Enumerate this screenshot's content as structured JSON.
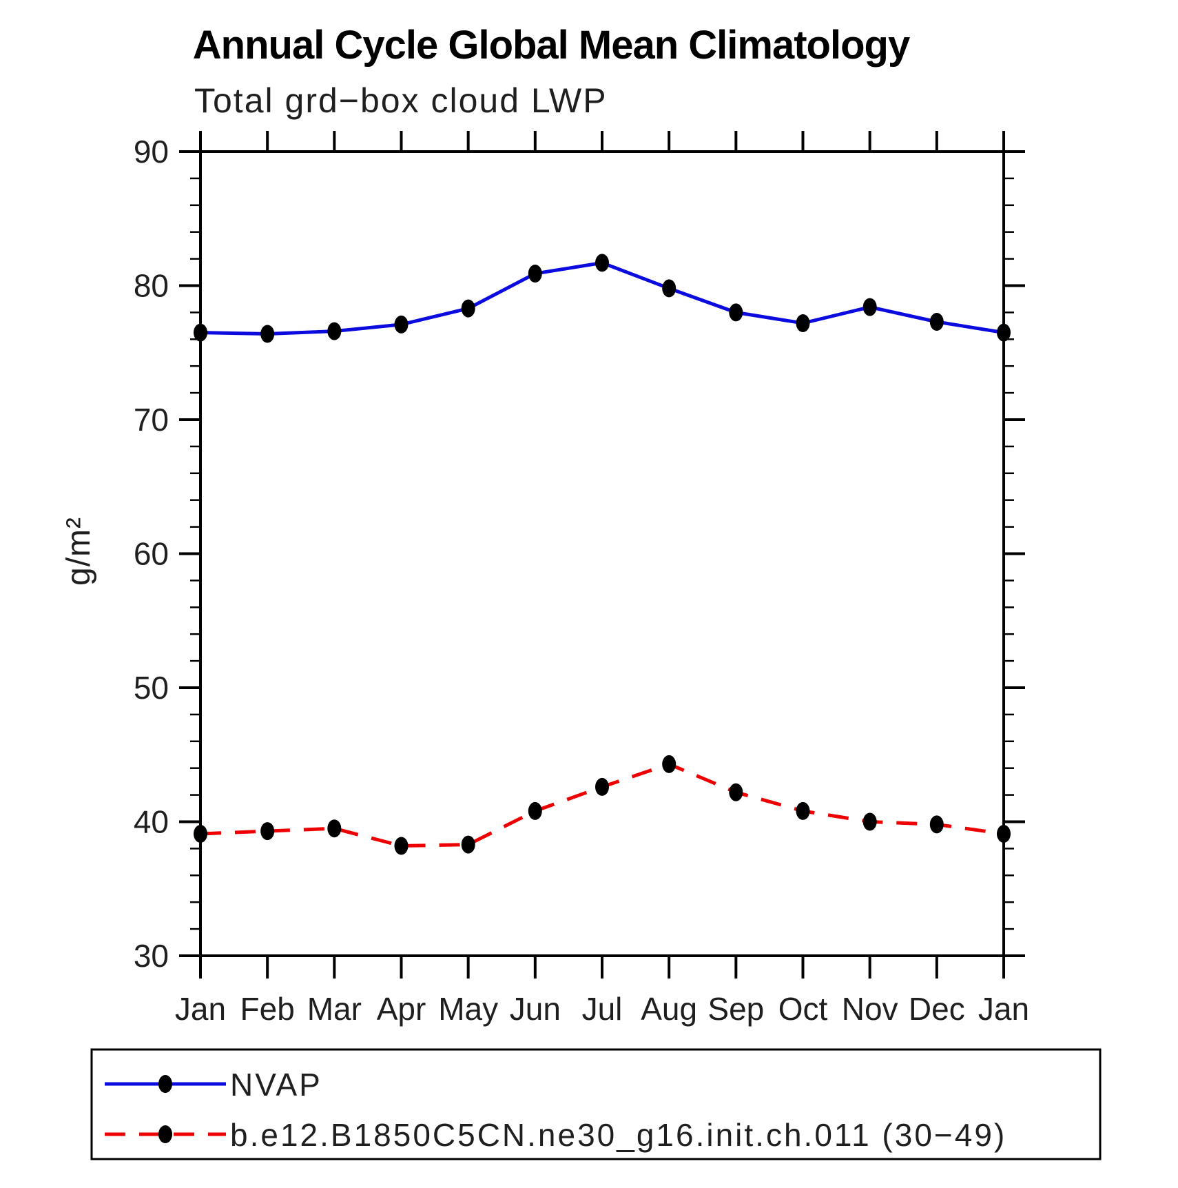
{
  "chart_data": {
    "type": "line",
    "title": "Annual Cycle Global Mean Climatology",
    "subtitle": "Total grd−box cloud LWP",
    "ylabel": "g/m²",
    "xlabel": "",
    "x_categories": [
      "Jan",
      "Feb",
      "Mar",
      "Apr",
      "May",
      "Jun",
      "Jul",
      "Aug",
      "Sep",
      "Oct",
      "Nov",
      "Dec",
      "Jan"
    ],
    "ylim": [
      30,
      90
    ],
    "y_major_ticks": [
      30,
      40,
      50,
      60,
      70,
      80,
      90
    ],
    "y_minor_step": 2,
    "grid": false,
    "legend_position": "bottom",
    "marker_color": "#000000",
    "series": [
      {
        "name": "NVAP",
        "color": "#0b0be0",
        "style": "solid",
        "marker": "filled-ellipse",
        "values": [
          76.5,
          76.4,
          76.6,
          77.1,
          78.3,
          80.9,
          81.7,
          79.8,
          78.0,
          77.2,
          78.4,
          77.3,
          76.5
        ]
      },
      {
        "name": "b.e12.B1850C5CN.ne30_g16.init.ch.011 (30−49)",
        "color": "#ee0000",
        "style": "dashed",
        "marker": "filled-ellipse",
        "values": [
          39.1,
          39.3,
          39.5,
          38.2,
          38.3,
          40.8,
          42.6,
          44.3,
          42.2,
          40.8,
          40.0,
          39.8,
          39.1
        ]
      }
    ]
  }
}
